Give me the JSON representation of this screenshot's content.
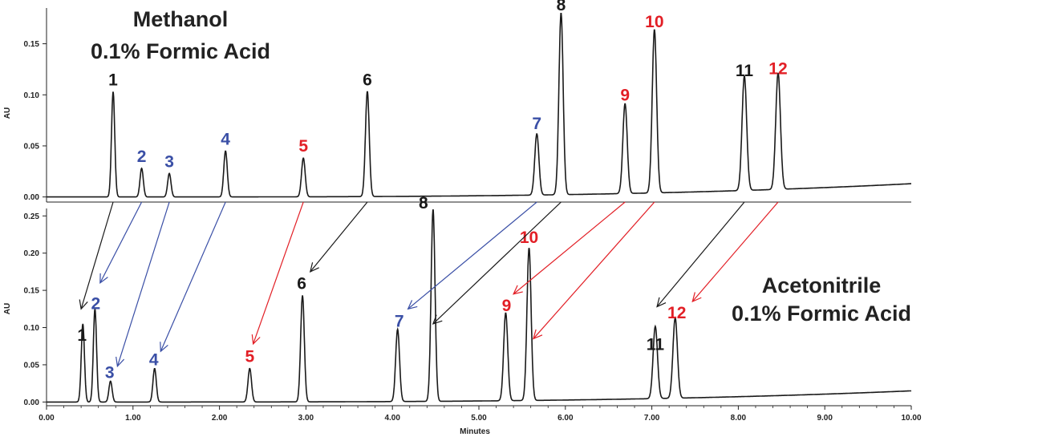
{
  "colors": {
    "black": "#1a1a1a",
    "blue": "#3a4fa6",
    "red": "#e21f26"
  },
  "chart_data": [
    {
      "type": "line",
      "panel": "top",
      "title_lines": [
        "Methanol",
        "0.1% Formic Acid"
      ],
      "ylabel": "AU",
      "xlim": [
        0,
        10
      ],
      "ylim": [
        -0.005,
        0.185
      ],
      "yticks": [
        0.0,
        0.05,
        0.1,
        0.15
      ],
      "ytick_labels": [
        "0.00",
        "0.05",
        "0.10",
        "0.15"
      ],
      "baseline_end": 0.013,
      "peaks": [
        {
          "label": "1",
          "x": 0.77,
          "height": 0.103,
          "color": "black"
        },
        {
          "label": "2",
          "x": 1.1,
          "height": 0.028,
          "color": "blue"
        },
        {
          "label": "3",
          "x": 1.42,
          "height": 0.023,
          "color": "blue"
        },
        {
          "label": "4",
          "x": 2.07,
          "height": 0.045,
          "color": "blue"
        },
        {
          "label": "5",
          "x": 2.97,
          "height": 0.038,
          "color": "red"
        },
        {
          "label": "6",
          "x": 3.71,
          "height": 0.103,
          "color": "black"
        },
        {
          "label": "7",
          "x": 5.67,
          "height": 0.06,
          "color": "blue"
        },
        {
          "label": "8",
          "x": 5.95,
          "height": 0.178,
          "color": "black"
        },
        {
          "label": "9",
          "x": 6.69,
          "height": 0.088,
          "color": "red"
        },
        {
          "label": "10",
          "x": 7.03,
          "height": 0.16,
          "color": "red"
        },
        {
          "label": "11",
          "x": 8.07,
          "height": 0.112,
          "color": "black"
        },
        {
          "label": "12",
          "x": 8.46,
          "height": 0.114,
          "color": "red"
        }
      ]
    },
    {
      "type": "line",
      "panel": "bottom",
      "title_lines": [
        "Acetonitrile",
        "0.1% Formic Acid"
      ],
      "ylabel": "AU",
      "xlabel": "Minutes",
      "xlim": [
        0,
        10
      ],
      "ylim": [
        -0.005,
        0.26
      ],
      "xticks": [
        0,
        1,
        2,
        3,
        4,
        5,
        6,
        7,
        8,
        9,
        10
      ],
      "xtick_labels": [
        "0.00",
        "1.00",
        "2.00",
        "3.00",
        "4.00",
        "5.00",
        "6.00",
        "7.00",
        "8.00",
        "9.00",
        "10.00"
      ],
      "yticks": [
        0.0,
        0.05,
        0.1,
        0.15,
        0.2,
        0.25
      ],
      "ytick_labels": [
        "0.00",
        "0.05",
        "0.10",
        "0.15",
        "0.20",
        "0.25"
      ],
      "baseline_end": 0.015,
      "peaks": [
        {
          "label": "1",
          "x": 0.42,
          "height": 0.105,
          "color": "black"
        },
        {
          "label": "2",
          "x": 0.56,
          "height": 0.125,
          "color": "blue"
        },
        {
          "label": "3",
          "x": 0.74,
          "height": 0.028,
          "color": "blue"
        },
        {
          "label": "4",
          "x": 1.25,
          "height": 0.045,
          "color": "blue"
        },
        {
          "label": "5",
          "x": 2.35,
          "height": 0.045,
          "color": "red"
        },
        {
          "label": "6",
          "x": 2.96,
          "height": 0.143,
          "color": "black"
        },
        {
          "label": "7",
          "x": 4.06,
          "height": 0.097,
          "color": "blue"
        },
        {
          "label": "8",
          "x": 4.47,
          "height": 0.258,
          "color": "black"
        },
        {
          "label": "9",
          "x": 5.31,
          "height": 0.118,
          "color": "red"
        },
        {
          "label": "10",
          "x": 5.58,
          "height": 0.205,
          "color": "red"
        },
        {
          "label": "11",
          "x": 7.04,
          "height": 0.097,
          "color": "black"
        },
        {
          "label": "12",
          "x": 7.27,
          "height": 0.108,
          "color": "red"
        }
      ]
    }
  ]
}
